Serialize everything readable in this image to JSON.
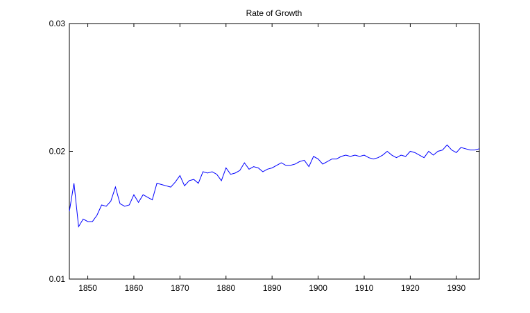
{
  "chart_data": {
    "type": "line",
    "title": "Rate of Growth",
    "xlabel": "",
    "ylabel": "",
    "xlim": [
      1846,
      1935
    ],
    "ylim": [
      0.01,
      0.03
    ],
    "xticks": [
      1850,
      1860,
      1870,
      1880,
      1890,
      1900,
      1910,
      1920,
      1930
    ],
    "xtick_labels": [
      "1850",
      "1860",
      "1870",
      "1880",
      "1890",
      "1900",
      "1910",
      "1920",
      "1930"
    ],
    "yticks": [
      0.01,
      0.02,
      0.03
    ],
    "ytick_labels": [
      "0.01",
      "0.02",
      "0.03"
    ],
    "grid": false,
    "line_color": "#0000ff",
    "series": [
      {
        "x": [
          1846,
          1847,
          1848,
          1849,
          1850,
          1851,
          1852,
          1853,
          1854,
          1855,
          1856,
          1857,
          1858,
          1859,
          1860,
          1861,
          1862,
          1863,
          1864,
          1865,
          1866,
          1867,
          1868,
          1869,
          1870,
          1871,
          1872,
          1873,
          1874,
          1875,
          1876,
          1877,
          1878,
          1879,
          1880,
          1881,
          1882,
          1883,
          1884,
          1885,
          1886,
          1887,
          1888,
          1889,
          1890,
          1891,
          1892,
          1893,
          1894,
          1895,
          1896,
          1897,
          1898,
          1899,
          1900,
          1901,
          1902,
          1903,
          1904,
          1905,
          1906,
          1907,
          1908,
          1909,
          1910,
          1911,
          1912,
          1913,
          1914,
          1915,
          1916,
          1917,
          1918,
          1919,
          1920,
          1921,
          1922,
          1923,
          1924,
          1925,
          1926,
          1927,
          1928,
          1929,
          1930,
          1931,
          1932,
          1933,
          1934,
          1935
        ],
        "values": [
          0.0153,
          0.0175,
          0.0141,
          0.0147,
          0.0145,
          0.0145,
          0.015,
          0.0158,
          0.0157,
          0.0161,
          0.0172,
          0.0159,
          0.0157,
          0.0158,
          0.0166,
          0.016,
          0.0166,
          0.0164,
          0.0162,
          0.0175,
          0.0174,
          0.0173,
          0.0172,
          0.0176,
          0.0181,
          0.0173,
          0.0177,
          0.0178,
          0.0175,
          0.0184,
          0.0183,
          0.0184,
          0.0182,
          0.0177,
          0.0187,
          0.0182,
          0.0183,
          0.0185,
          0.0191,
          0.0186,
          0.0188,
          0.0187,
          0.0184,
          0.0186,
          0.0187,
          0.0189,
          0.0191,
          0.0189,
          0.0189,
          0.019,
          0.0192,
          0.0193,
          0.0188,
          0.0196,
          0.0194,
          0.019,
          0.0192,
          0.0194,
          0.0194,
          0.0196,
          0.0197,
          0.0196,
          0.0197,
          0.0196,
          0.0197,
          0.0195,
          0.0194,
          0.0195,
          0.0197,
          0.02,
          0.0197,
          0.0195,
          0.0197,
          0.0196,
          0.02,
          0.0199,
          0.0197,
          0.0195,
          0.02,
          0.0197,
          0.02,
          0.0201,
          0.0205,
          0.0201,
          0.0199,
          0.0203,
          0.0202,
          0.0201,
          0.0201,
          0.0202
        ]
      }
    ]
  }
}
